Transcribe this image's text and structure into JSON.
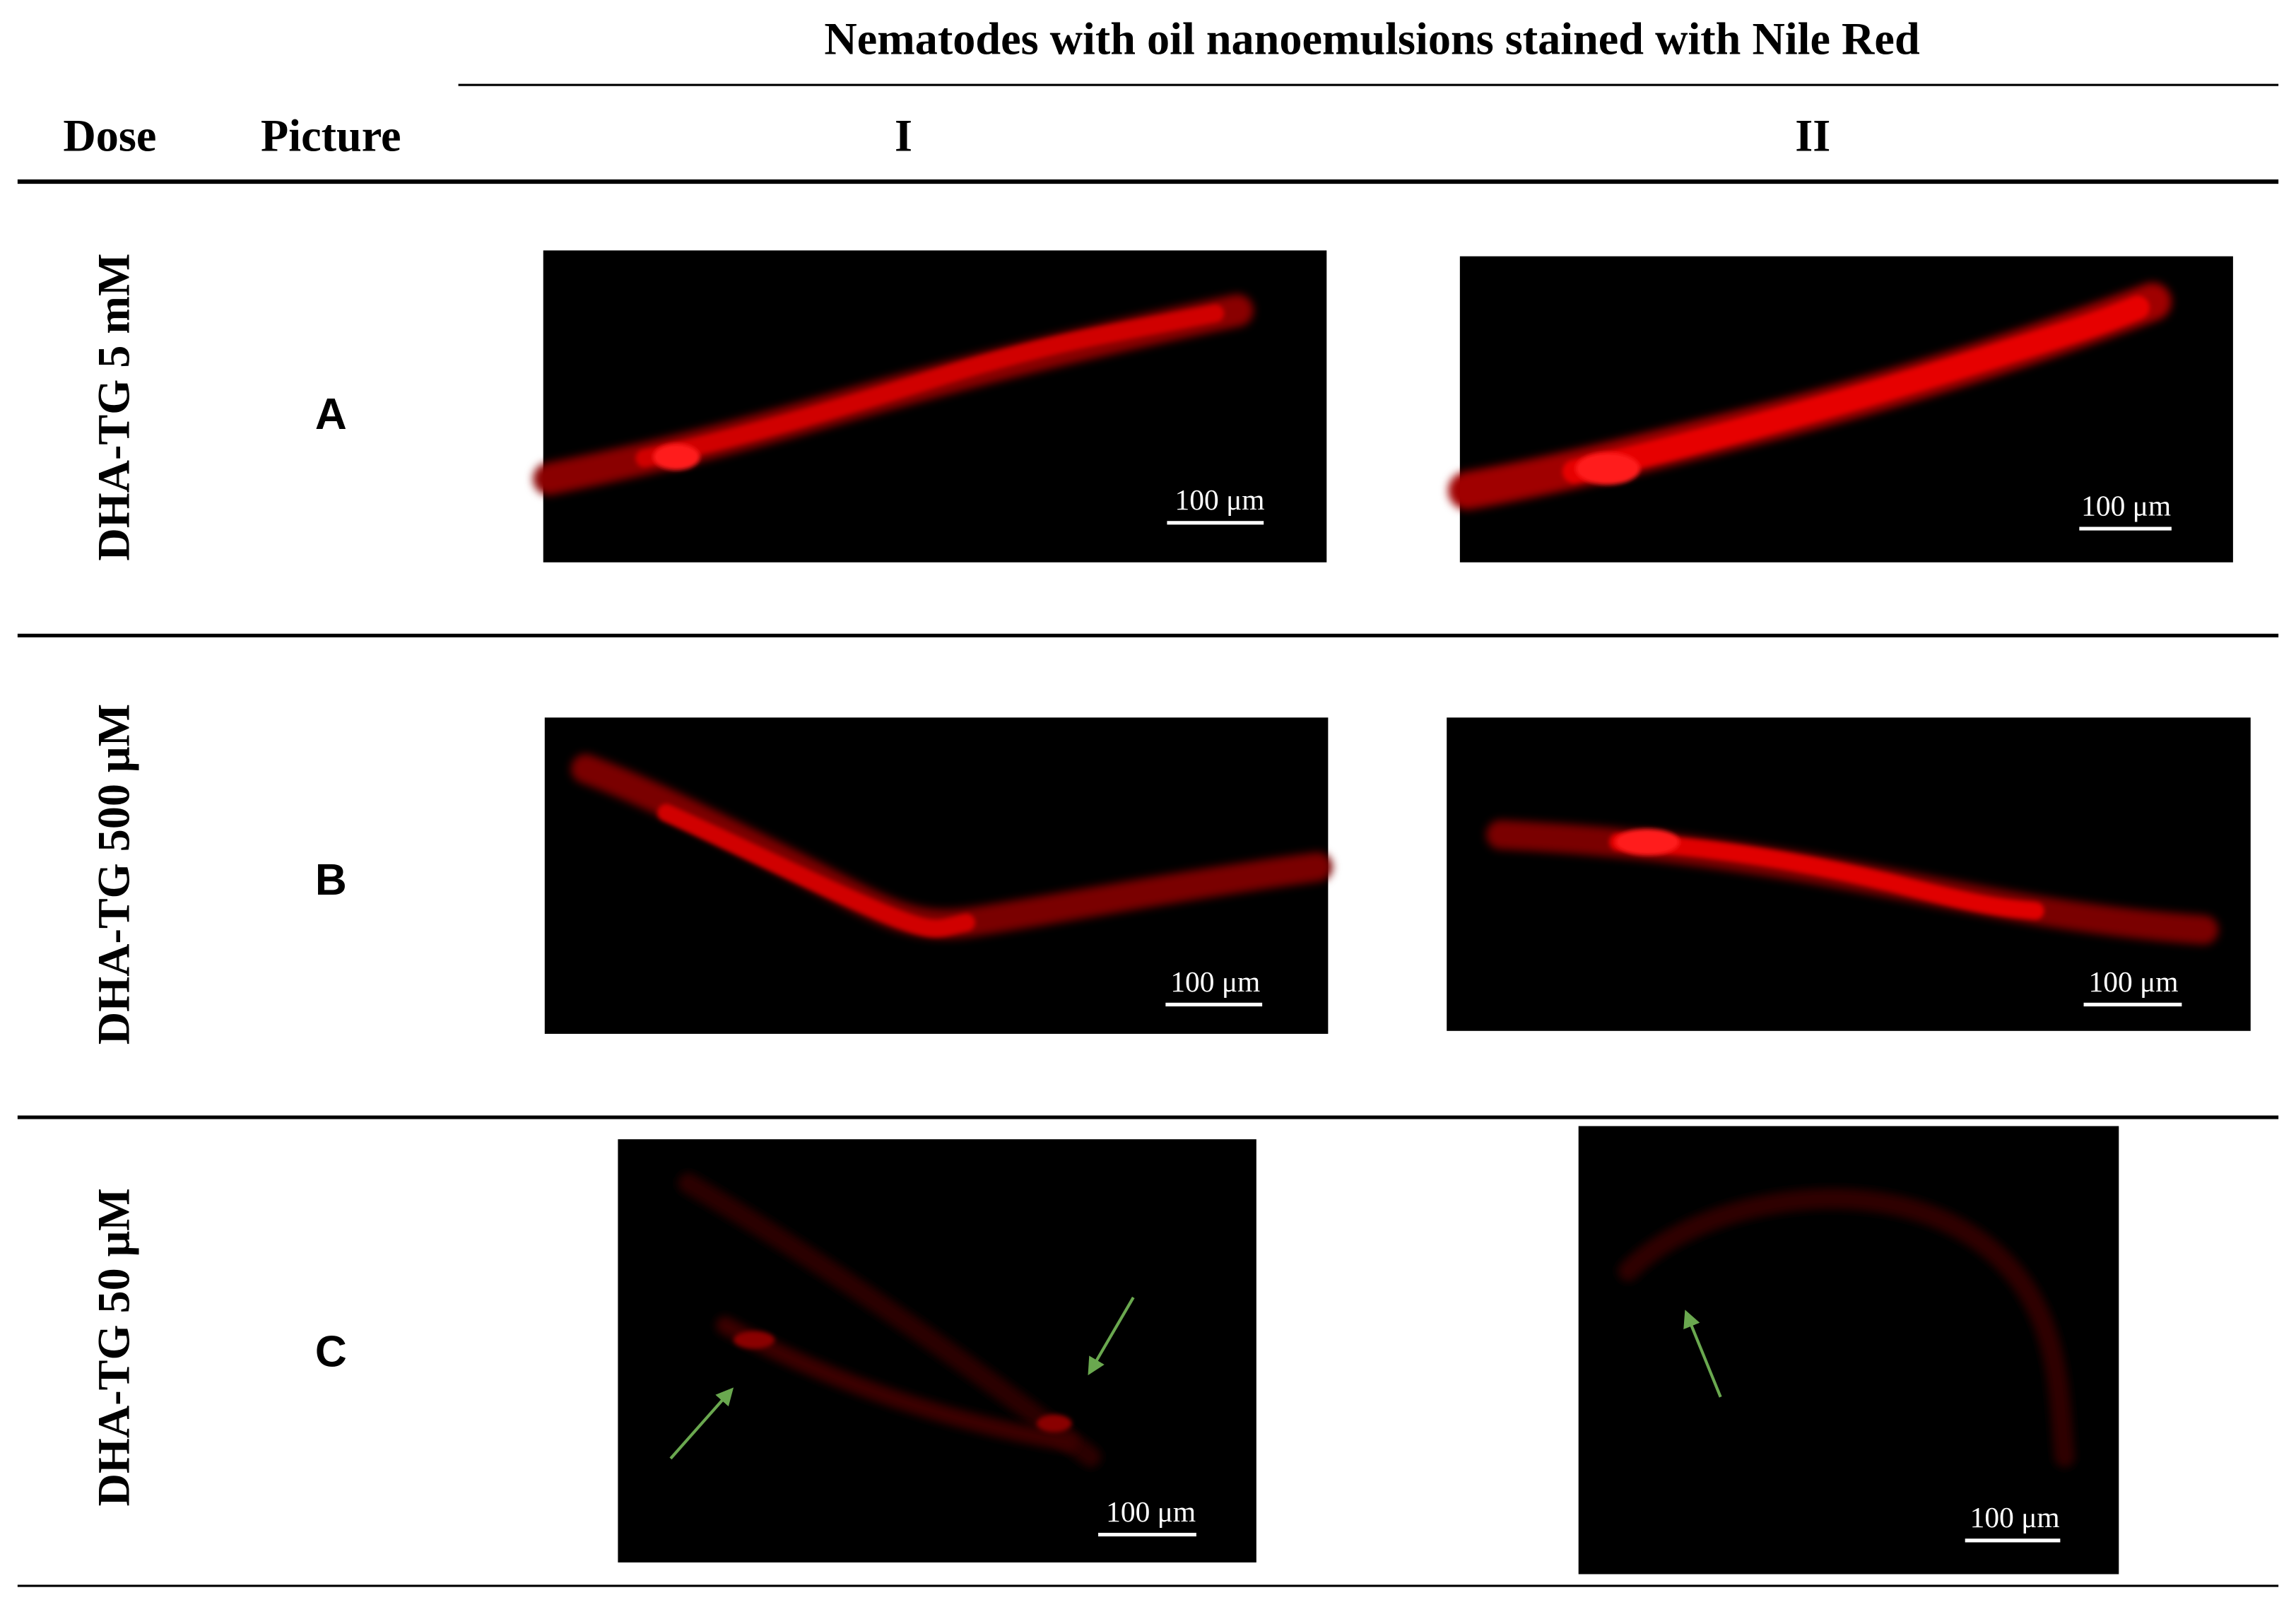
{
  "header": {
    "title": "Nematodes with oil nanoemulsions stained with Nile Red",
    "columns": [
      "Dose",
      "Picture",
      "I",
      "II"
    ]
  },
  "rows": [
    {
      "dose": "DHA-TG 5 mM",
      "picture": "A",
      "scale_bars": [
        "100 μm",
        "100 μm"
      ]
    },
    {
      "dose": "DHA-TG 500 μM",
      "picture": "B",
      "scale_bars": [
        "100 μm",
        "100 μm"
      ]
    },
    {
      "dose": "DHA-TG 50 μM",
      "picture": "C",
      "scale_bars": [
        "100 μm",
        "100 μm"
      ]
    }
  ]
}
